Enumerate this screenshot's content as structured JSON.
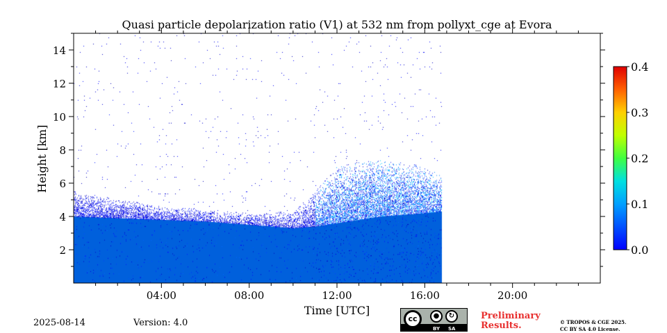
{
  "chart_data": {
    "type": "heatmap",
    "title": "Quasi particle depolarization ratio (V1) at 532 nm from pollyxt_cge at Evora",
    "xlabel": "Time [UTC]",
    "ylabel": "Height [km]",
    "xlim_hours": [
      0,
      24
    ],
    "xticks": [
      {
        "hour": 4,
        "label": "04:00"
      },
      {
        "hour": 8,
        "label": "08:00"
      },
      {
        "hour": 12,
        "label": "12:00"
      },
      {
        "hour": 16,
        "label": "16:00"
      },
      {
        "hour": 20,
        "label": "20:00"
      }
    ],
    "ylim_km": [
      0,
      15
    ],
    "yticks": [
      {
        "value": 2,
        "label": "2"
      },
      {
        "value": 4,
        "label": "4"
      },
      {
        "value": 6,
        "label": "6"
      },
      {
        "value": 8,
        "label": "8"
      },
      {
        "value": 10,
        "label": "10"
      },
      {
        "value": 12,
        "label": "12"
      },
      {
        "value": 14,
        "label": "14"
      }
    ],
    "colorbar": {
      "min": 0.0,
      "max": 0.4,
      "ticks": [
        {
          "value": 0.0,
          "label": "0.0"
        },
        {
          "value": 0.1,
          "label": "0.1"
        },
        {
          "value": 0.2,
          "label": "0.2"
        },
        {
          "value": 0.3,
          "label": "0.3"
        },
        {
          "value": 0.4,
          "label": "0.4"
        }
      ],
      "colormap": "jet"
    },
    "data_end_hour": 16.75,
    "dense_layer_top_km": [
      {
        "hour": 0,
        "km": 4.0
      },
      {
        "hour": 2,
        "km": 3.9
      },
      {
        "hour": 4,
        "km": 3.8
      },
      {
        "hour": 6,
        "km": 3.7
      },
      {
        "hour": 8,
        "km": 3.5
      },
      {
        "hour": 10,
        "km": 3.3
      },
      {
        "hour": 11,
        "km": 3.4
      },
      {
        "hour": 12,
        "km": 3.6
      },
      {
        "hour": 14,
        "km": 4.0
      },
      {
        "hour": 16,
        "km": 4.2
      },
      {
        "hour": 16.75,
        "km": 4.3
      }
    ],
    "sparse_layer_top_km": [
      {
        "hour": 0,
        "km": 5.5
      },
      {
        "hour": 4,
        "km": 4.6
      },
      {
        "hour": 8,
        "km": 4.2
      },
      {
        "hour": 10,
        "km": 4.3
      },
      {
        "hour": 11,
        "km": 5.5
      },
      {
        "hour": 12,
        "km": 7.0
      },
      {
        "hour": 14,
        "km": 7.5
      },
      {
        "hour": 16,
        "km": 7.0
      },
      {
        "hour": 16.75,
        "km": 6.5
      }
    ],
    "typical_value": 0.02,
    "noise_max_value": 0.12
  },
  "footer": {
    "date": "2025-08-14",
    "version": "Version: 4.0",
    "cc_by": "BY",
    "cc_sa": "SA",
    "cc_symbol": "cc",
    "preliminary_line1": "Preliminary",
    "preliminary_line2": "Results.",
    "copyright_line1": "© TROPOS & CGE 2025.",
    "copyright_line2": "CC BY SA 4.0 License."
  },
  "colors": {
    "dense_blue": "#0060dc",
    "background": "#ffffff"
  }
}
